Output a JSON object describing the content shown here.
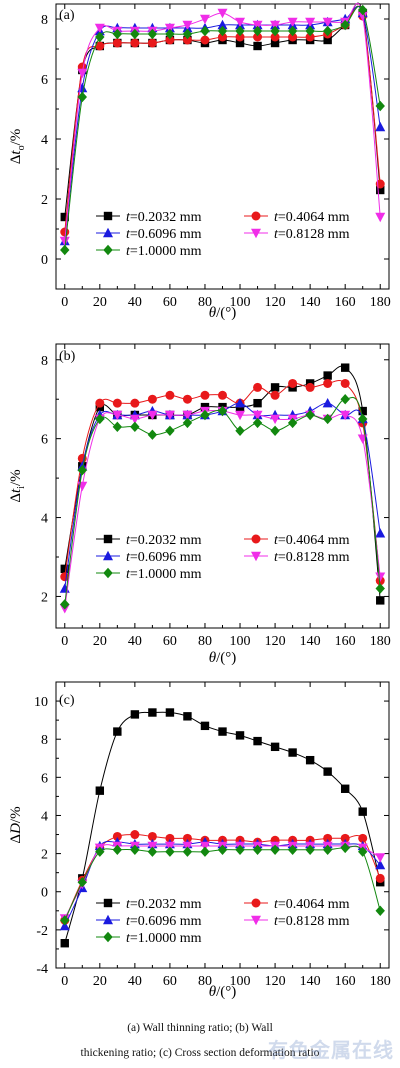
{
  "figure": {
    "caption_line1": "(a) Wall thinning ratio; (b) Wall",
    "caption_line2": "thickening ratio; (c) Cross section deformation ratio",
    "watermark": "有色金属在线"
  },
  "legend_entries": [
    {
      "label": "t=0.2032 mm",
      "color": "#000000",
      "marker": "square"
    },
    {
      "label": "t=0.4064 mm",
      "color": "#e8191b",
      "marker": "circle"
    },
    {
      "label": "t=0.6096 mm",
      "color": "#1a1adf",
      "marker": "triangle-up"
    },
    {
      "label": "t=0.8128 mm",
      "color": "#f02de8",
      "marker": "triangle-down"
    },
    {
      "label": "t=1.0000 mm",
      "color": "#12880f",
      "marker": "diamond"
    }
  ],
  "chart_data": [
    {
      "panel": "(a)",
      "type": "line",
      "ylabel_main": "Δt",
      "ylabel_sub": "o",
      "ylabel_unit": "/%",
      "xlabel": "θ/(°)",
      "xlim": [
        -5,
        185
      ],
      "ylim": [
        -1,
        8.5
      ],
      "xticks": [
        0,
        20,
        40,
        60,
        80,
        100,
        120,
        140,
        160,
        180
      ],
      "yticks": [
        0,
        2,
        4,
        6,
        8
      ],
      "x": [
        0,
        10,
        20,
        30,
        40,
        50,
        60,
        70,
        80,
        90,
        100,
        110,
        120,
        130,
        140,
        150,
        160,
        170,
        180
      ],
      "series": [
        {
          "name": "t=0.2032 mm",
          "values": [
            1.4,
            6.3,
            7.1,
            7.2,
            7.2,
            7.2,
            7.3,
            7.3,
            7.2,
            7.3,
            7.2,
            7.1,
            7.2,
            7.3,
            7.3,
            7.3,
            7.8,
            8.2,
            2.3
          ]
        },
        {
          "name": "t=0.4064 mm",
          "values": [
            0.9,
            6.4,
            7.1,
            7.2,
            7.2,
            7.2,
            7.3,
            7.3,
            7.3,
            7.4,
            7.4,
            7.4,
            7.4,
            7.4,
            7.4,
            7.5,
            7.8,
            8.1,
            2.5
          ]
        },
        {
          "name": "t=0.6096 mm",
          "values": [
            0.6,
            5.7,
            7.6,
            7.7,
            7.7,
            7.7,
            7.7,
            7.7,
            7.7,
            7.8,
            7.8,
            7.8,
            7.8,
            7.8,
            7.8,
            7.9,
            8.0,
            8.2,
            4.4
          ]
        },
        {
          "name": "t=0.8128 mm",
          "values": [
            0.6,
            6.2,
            7.7,
            7.6,
            7.6,
            7.6,
            7.7,
            7.8,
            8.0,
            8.2,
            7.9,
            7.8,
            7.8,
            7.9,
            7.9,
            7.9,
            7.9,
            8.1,
            1.4
          ]
        },
        {
          "name": "t=1.0000 mm",
          "values": [
            0.3,
            5.4,
            7.4,
            7.5,
            7.5,
            7.5,
            7.5,
            7.5,
            7.6,
            7.6,
            7.6,
            7.6,
            7.6,
            7.6,
            7.6,
            7.6,
            7.8,
            8.3,
            5.1
          ]
        }
      ]
    },
    {
      "panel": "(b)",
      "type": "line",
      "ylabel_main": "Δt",
      "ylabel_sub": "i",
      "ylabel_unit": "/%",
      "xlabel": "θ/(°)",
      "xlim": [
        -5,
        185
      ],
      "ylim": [
        1.2,
        8.4
      ],
      "xticks": [
        0,
        20,
        40,
        60,
        80,
        100,
        120,
        140,
        160,
        180
      ],
      "yticks": [
        2,
        4,
        6,
        8
      ],
      "x": [
        0,
        10,
        20,
        30,
        40,
        50,
        60,
        70,
        80,
        90,
        100,
        110,
        120,
        130,
        140,
        150,
        160,
        170,
        180
      ],
      "series": [
        {
          "name": "t=0.2032 mm",
          "values": [
            2.7,
            5.3,
            6.8,
            6.6,
            6.6,
            6.6,
            6.6,
            6.6,
            6.8,
            6.8,
            6.8,
            6.9,
            7.3,
            7.3,
            7.4,
            7.6,
            7.8,
            6.7,
            1.9
          ]
        },
        {
          "name": "t=0.4064 mm",
          "values": [
            2.5,
            5.5,
            6.9,
            6.9,
            6.9,
            7.0,
            7.1,
            7.0,
            7.1,
            7.1,
            6.9,
            7.3,
            7.1,
            7.4,
            7.3,
            7.4,
            7.4,
            6.4,
            2.4
          ]
        },
        {
          "name": "t=0.6096 mm",
          "values": [
            2.2,
            5.3,
            6.6,
            6.6,
            6.6,
            6.7,
            6.6,
            6.6,
            6.6,
            6.7,
            6.9,
            6.6,
            6.6,
            6.6,
            6.7,
            6.9,
            6.6,
            6.5,
            3.6
          ]
        },
        {
          "name": "t=0.8128 mm",
          "values": [
            1.7,
            4.8,
            6.5,
            6.6,
            6.5,
            6.6,
            6.6,
            6.6,
            6.7,
            6.7,
            6.6,
            6.6,
            6.5,
            6.5,
            6.6,
            6.5,
            6.6,
            6.0,
            2.5
          ]
        },
        {
          "name": "t=1.0000 mm",
          "values": [
            1.8,
            5.2,
            6.5,
            6.3,
            6.3,
            6.1,
            6.2,
            6.4,
            6.6,
            6.7,
            6.2,
            6.4,
            6.2,
            6.4,
            6.6,
            6.5,
            7.0,
            6.5,
            2.2
          ]
        }
      ]
    },
    {
      "panel": "(c)",
      "type": "line",
      "ylabel_main": "ΔD",
      "ylabel_sub": "",
      "ylabel_unit": "/%",
      "xlabel": "θ/(°)",
      "xlim": [
        -5,
        185
      ],
      "ylim": [
        -4,
        11
      ],
      "xticks": [
        0,
        20,
        40,
        60,
        80,
        100,
        120,
        140,
        160,
        180
      ],
      "yticks": [
        -4,
        -2,
        0,
        2,
        4,
        6,
        8,
        10
      ],
      "x": [
        0,
        10,
        20,
        30,
        40,
        50,
        60,
        70,
        80,
        90,
        100,
        110,
        120,
        130,
        140,
        150,
        160,
        170,
        180
      ],
      "series": [
        {
          "name": "t=0.2032 mm",
          "values": [
            -2.7,
            0.7,
            5.3,
            8.4,
            9.3,
            9.4,
            9.4,
            9.2,
            8.7,
            8.4,
            8.2,
            7.9,
            7.6,
            7.3,
            6.9,
            6.3,
            5.4,
            4.2,
            0.5
          ]
        },
        {
          "name": "t=0.4064 mm",
          "values": [
            -1.5,
            0.6,
            2.3,
            2.9,
            3.0,
            2.9,
            2.8,
            2.8,
            2.7,
            2.7,
            2.7,
            2.6,
            2.7,
            2.7,
            2.7,
            2.8,
            2.8,
            2.8,
            0.7
          ]
        },
        {
          "name": "t=0.6096 mm",
          "values": [
            -1.8,
            0.2,
            2.4,
            2.6,
            2.5,
            2.5,
            2.5,
            2.5,
            2.6,
            2.5,
            2.5,
            2.5,
            2.4,
            2.5,
            2.5,
            2.5,
            2.5,
            2.4,
            1.4
          ]
        },
        {
          "name": "t=0.8128 mm",
          "values": [
            -1.4,
            0.4,
            2.3,
            2.4,
            2.4,
            2.4,
            2.4,
            2.4,
            2.4,
            2.4,
            2.4,
            2.4,
            2.4,
            2.4,
            2.4,
            2.4,
            2.4,
            2.3,
            1.8
          ]
        },
        {
          "name": "t=1.0000 mm",
          "values": [
            -1.5,
            0.5,
            2.1,
            2.2,
            2.2,
            2.1,
            2.1,
            2.1,
            2.1,
            2.2,
            2.2,
            2.2,
            2.2,
            2.2,
            2.2,
            2.2,
            2.3,
            2.1,
            -1.0
          ]
        }
      ]
    }
  ]
}
